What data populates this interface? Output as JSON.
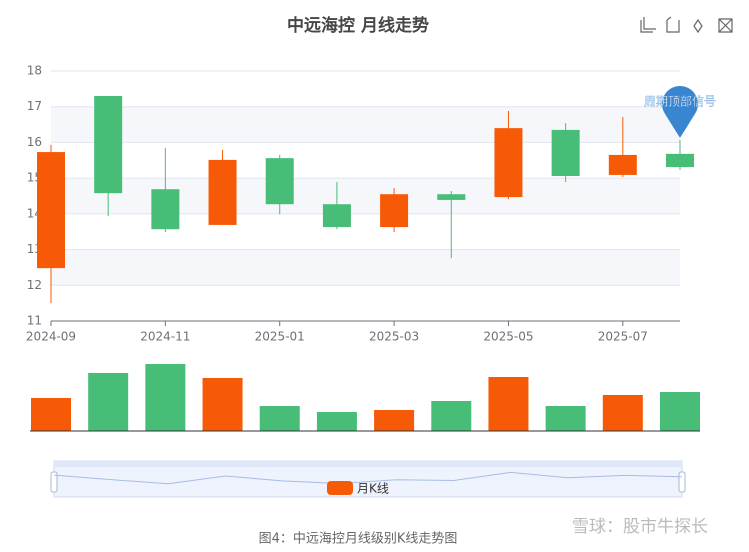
{
  "chart_data": {
    "type": "candlestick",
    "title": "中远海控 月线走势",
    "categories": [
      "2024-09",
      null,
      "2024-11",
      null,
      "2025-01",
      null,
      "2025-03",
      null,
      "2025-05",
      null,
      "2025-07",
      null
    ],
    "series": [
      {
        "name": "月K线",
        "up_color": "#f65a06",
        "down_color": "#47bd78",
        "values": [
          [
            12.48,
            15.73,
            11.5,
            15.93
          ],
          [
            17.3,
            14.58,
            13.94,
            17.3
          ],
          [
            14.69,
            13.57,
            13.49,
            15.84
          ],
          [
            13.69,
            15.51,
            13.69,
            15.79
          ],
          [
            15.56,
            14.27,
            13.99,
            15.65
          ],
          [
            14.27,
            13.63,
            13.57,
            14.89
          ],
          [
            13.63,
            14.55,
            13.49,
            14.72
          ],
          [
            14.55,
            14.39,
            12.76,
            14.64
          ],
          [
            14.47,
            16.4,
            14.41,
            16.88
          ],
          [
            16.35,
            15.06,
            14.89,
            16.54
          ],
          [
            15.09,
            15.65,
            15.03,
            16.71
          ],
          [
            15.68,
            15.31,
            15.23,
            16.07
          ]
        ]
      }
    ],
    "volume": [
      33,
      58,
      67,
      53,
      25,
      19,
      21,
      30,
      54,
      25,
      36,
      39
    ],
    "volume_ylim": [
      0,
      70
    ],
    "ylim": [
      11,
      18
    ],
    "yticks": [
      11,
      12,
      13,
      14,
      15,
      16,
      17,
      18
    ],
    "annotation": "周期顶部信号",
    "caption": "图4：中远海控月线级别K线走势图",
    "watermark": "雪球：股市牛探长"
  }
}
